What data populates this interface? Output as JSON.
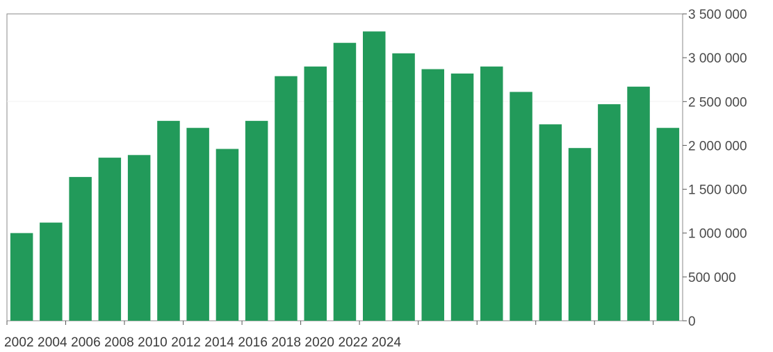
{
  "chart_data": {
    "type": "bar",
    "title": "",
    "xlabel": "",
    "ylabel": "",
    "ylim": [
      0,
      3500000
    ],
    "yticks": [
      "0",
      "500 000",
      "1 000 000",
      "1 500 000",
      "2 000 000",
      "2 500 000",
      "3 000 000",
      "3 500 000"
    ],
    "ytick_values": [
      0,
      500000,
      1000000,
      1500000,
      2000000,
      2500000,
      3000000,
      3500000
    ],
    "x_tick_labels_text": "2002 2004 2006 2008 2010 2012 2014 2016 2018 2020 2022 2024",
    "grid": "none",
    "values": [
      1000000,
      1120000,
      1640000,
      1860000,
      1890000,
      2280000,
      2200000,
      1960000,
      2280000,
      2790000,
      2900000,
      3170000,
      3300000,
      3050000,
      2870000,
      2820000,
      2900000,
      2610000,
      2240000,
      1970000,
      2470000,
      2670000,
      2200000
    ],
    "bar_color": "#229a5a"
  }
}
